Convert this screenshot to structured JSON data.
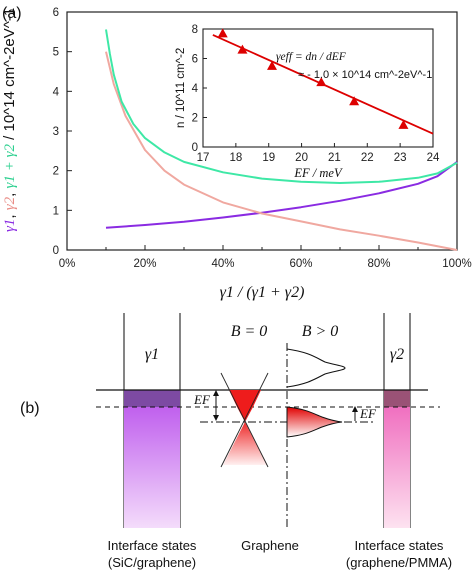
{
  "panel_labels": {
    "a": "(a)",
    "b": "(b)"
  },
  "chart_data": [
    {
      "type": "line",
      "xlim": [
        0,
        100
      ],
      "ylim": [
        0,
        6
      ],
      "x_ticks": [
        "0%",
        "20%",
        "40%",
        "60%",
        "80%",
        "100%"
      ],
      "y_ticks": [
        "0",
        "1",
        "2",
        "3",
        "4",
        "5",
        "6"
      ],
      "xlabel": "γ1 / (γ1 + γ2)",
      "ylabel": {
        "g1": "γ1",
        "g2": "γ2",
        "sum": "γ1 + γ2",
        "unit": "/ 10^14 cm^-2eV^-1"
      },
      "series": [
        {
          "color": "#8a2be2",
          "x": [
            10,
            20,
            30,
            40,
            50,
            60,
            70,
            80,
            90,
            95,
            100
          ],
          "y": [
            0.56,
            0.63,
            0.71,
            0.82,
            0.94,
            1.08,
            1.24,
            1.43,
            1.67,
            1.86,
            2.22
          ]
        },
        {
          "color": "#f0a8a0",
          "x": [
            10,
            12,
            15,
            20,
            25,
            30,
            40,
            50,
            60,
            70,
            80,
            90,
            100
          ],
          "y": [
            5.0,
            4.18,
            3.38,
            2.52,
            2.0,
            1.65,
            1.2,
            0.92,
            0.72,
            0.52,
            0.36,
            0.19,
            0.0
          ]
        },
        {
          "color": "#3ee8a6",
          "x": [
            10,
            11,
            12,
            14,
            17,
            20,
            25,
            30,
            40,
            50,
            60,
            70,
            80,
            90,
            95,
            100
          ],
          "y": [
            5.56,
            4.94,
            4.42,
            3.74,
            3.18,
            2.82,
            2.46,
            2.22,
            1.96,
            1.8,
            1.72,
            1.69,
            1.72,
            1.82,
            1.93,
            2.2
          ]
        }
      ]
    },
    {
      "type": "scatter",
      "xlim": [
        17,
        24
      ],
      "ylim": [
        0,
        8
      ],
      "x_ticks": [
        "17",
        "18",
        "19",
        "20",
        "21",
        "22",
        "23",
        "24"
      ],
      "y_ticks": [
        "0",
        "2",
        "4",
        "6",
        "8"
      ],
      "xlabel": "EF / meV",
      "ylabel": "n / 10^11 cm^-2",
      "annotation": {
        "line1_lhs": "γeff = dn / dEF",
        "line2": "≈ - 1.0 × 10^14 cm^-2eV^-1"
      },
      "points": {
        "x": [
          17.6,
          18.2,
          19.1,
          20.6,
          21.6,
          23.1
        ],
        "y": [
          7.7,
          6.6,
          5.5,
          4.4,
          3.1,
          1.5
        ]
      },
      "fit": {
        "x": [
          17.3,
          24.0
        ],
        "y": [
          7.6,
          0.9
        ]
      },
      "color": "#dd0000"
    }
  ],
  "diagram": {
    "gamma1": "γ1",
    "gamma2": "γ2",
    "b0": "B = 0",
    "bpos": "B > 0",
    "ef": "EF",
    "captions": {
      "left_l1": "Interface states",
      "left_l2": "(SiC/graphene)",
      "mid": "Graphene",
      "right_l1": "Interface states",
      "right_l2": "(graphene/PMMA)"
    }
  }
}
